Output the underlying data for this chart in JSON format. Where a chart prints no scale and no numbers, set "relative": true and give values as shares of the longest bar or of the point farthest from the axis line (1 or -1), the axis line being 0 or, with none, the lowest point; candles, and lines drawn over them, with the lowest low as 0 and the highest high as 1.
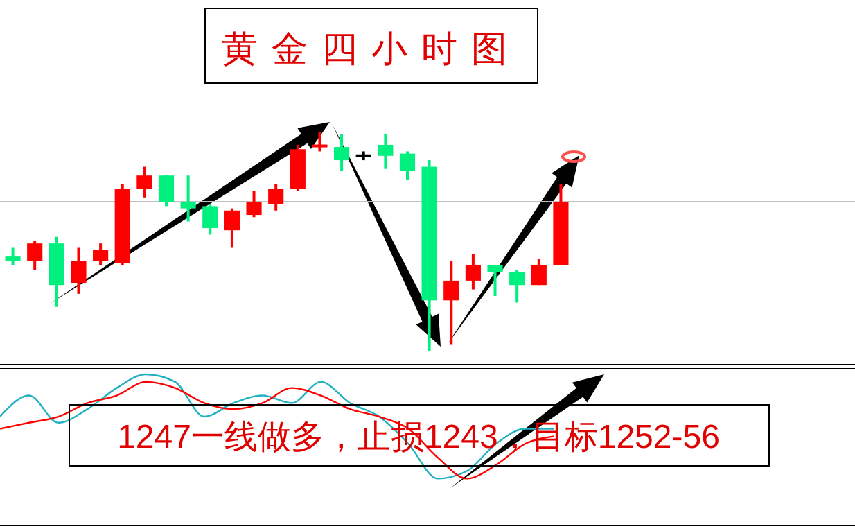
{
  "chart_data": [
    {
      "type": "candlestick",
      "title": "黄金四小时图",
      "relative": true,
      "categories": [
        null,
        null,
        null,
        null,
        null,
        null,
        null,
        null,
        null,
        null,
        null,
        null,
        null,
        null,
        null,
        null,
        null,
        null,
        null,
        null,
        null,
        null,
        null,
        null,
        null,
        null
      ],
      "ohlc": [
        [
          0.43,
          0.47,
          0.39,
          0.41
        ],
        [
          0.41,
          0.5,
          0.37,
          0.49
        ],
        [
          0.49,
          0.52,
          0.2,
          0.3
        ],
        [
          0.31,
          0.47,
          0.26,
          0.41
        ],
        [
          0.41,
          0.49,
          0.39,
          0.46
        ],
        [
          0.4,
          0.76,
          0.39,
          0.74
        ],
        [
          0.74,
          0.84,
          0.7,
          0.8
        ],
        [
          0.8,
          0.8,
          0.66,
          0.68
        ],
        [
          0.68,
          0.8,
          0.59,
          0.65
        ],
        [
          0.66,
          0.67,
          0.53,
          0.56
        ],
        [
          0.55,
          0.65,
          0.47,
          0.64
        ],
        [
          0.62,
          0.73,
          0.61,
          0.68
        ],
        [
          0.67,
          0.76,
          0.64,
          0.74
        ],
        [
          0.74,
          0.94,
          0.73,
          0.92
        ],
        [
          0.93,
          1.0,
          0.91,
          0.94
        ],
        [
          0.93,
          0.99,
          0.82,
          0.87
        ],
        [
          0.89,
          0.91,
          0.87,
          0.89
        ],
        [
          0.94,
          0.99,
          0.83,
          0.89
        ],
        [
          0.9,
          0.91,
          0.78,
          0.82
        ],
        [
          0.84,
          0.87,
          0.0,
          0.23
        ],
        [
          0.23,
          0.41,
          0.03,
          0.32
        ],
        [
          0.32,
          0.44,
          0.28,
          0.39
        ],
        [
          0.39,
          0.39,
          0.25,
          0.36
        ],
        [
          0.36,
          0.37,
          0.22,
          0.3
        ],
        [
          0.3,
          0.42,
          0.3,
          0.39
        ],
        [
          0.39,
          0.76,
          0.39,
          0.68
        ]
      ],
      "colors": [
        "#00f080",
        "#ff0000",
        "#00f080",
        "#ff0000",
        "#ff0000",
        "#ff0000",
        "#ff0000",
        "#00f080",
        "#00f080",
        "#00f080",
        "#ff0000",
        "#ff0000",
        "#ff0000",
        "#ff0000",
        "#ff0000",
        "#00f080",
        "#000000",
        "#00f080",
        "#00f080",
        "#00f080",
        "#ff0000",
        "#ff0000",
        "#00f080",
        "#00f080",
        "#ff0000",
        "#ff0000"
      ],
      "ref_lines": [
        {
          "axis": "y",
          "value": 0.68,
          "color": "#c0c0c0"
        }
      ],
      "annotations": [
        "1247一线做多，止损1243，目标1252-56"
      ]
    },
    {
      "type": "line",
      "relative": true,
      "categories": [
        null,
        null,
        null,
        null,
        null,
        null,
        null,
        null,
        null,
        null,
        null,
        null,
        null,
        null,
        null,
        null,
        null,
        null,
        null,
        null
      ],
      "series": [
        {
          "color": "#20b0c0",
          "values": [
            0.72,
            0.86,
            0.68,
            0.77,
            0.91,
            1.0,
            0.95,
            0.72,
            0.81,
            0.86,
            0.81,
            0.95,
            0.81,
            0.72,
            0.54,
            0.31,
            0.36,
            0.54,
            0.64,
            0.64
          ]
        },
        {
          "color": "#ff0000",
          "values": [
            0.64,
            0.68,
            0.72,
            0.81,
            0.86,
            0.95,
            0.91,
            0.81,
            0.77,
            0.81,
            0.91,
            0.86,
            0.77,
            0.72,
            0.64,
            0.45,
            0.31,
            0.4,
            0.54,
            0.59
          ]
        }
      ]
    }
  ]
}
